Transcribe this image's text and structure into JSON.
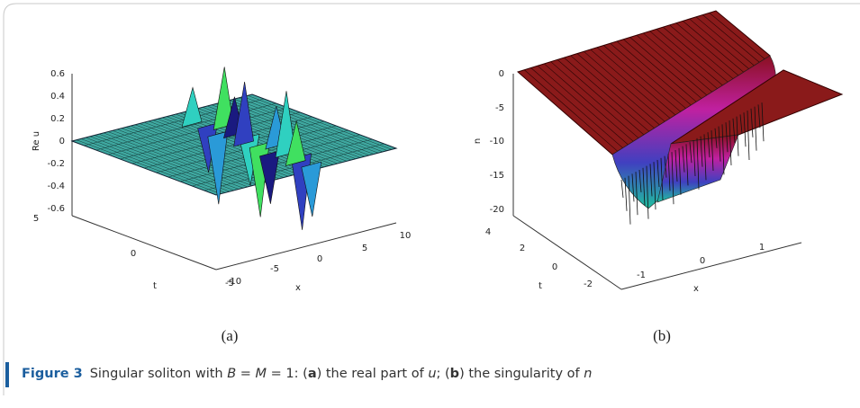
{
  "panel_a": {
    "z_label": "Re u",
    "z_ticks": [
      "0.6",
      "0.4",
      "0.2",
      "0",
      "-0.2",
      "-0.4",
      "-0.6"
    ],
    "t_label": "t",
    "t_ticks": [
      "5",
      "0",
      "-5"
    ],
    "x_label": "x",
    "x_ticks": [
      "-10",
      "-5",
      "0",
      "5",
      "10"
    ],
    "sub_label": "(a)"
  },
  "panel_b": {
    "z_label": "n",
    "z_ticks": [
      "0",
      "-5",
      "-10",
      "-15",
      "-20"
    ],
    "t_label": "t",
    "t_ticks": [
      "4",
      "2",
      "0",
      "-2"
    ],
    "x_label": "x",
    "x_ticks": [
      "-1",
      "0",
      "1"
    ],
    "sub_label": "(b)"
  },
  "caption": {
    "label": "Figure 3",
    "parts": [
      "Singular soliton with ",
      "B",
      " = ",
      "M",
      " = 1: (",
      "a",
      ") the real part of ",
      "u",
      "; (",
      "b",
      ") the singularity of ",
      "n"
    ]
  }
}
